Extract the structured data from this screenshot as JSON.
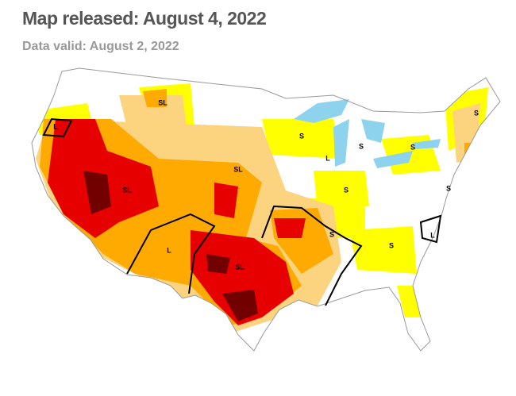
{
  "header": {
    "title": "Map released: August 4, 2022",
    "subtitle": "Data valid: August 2, 2022"
  },
  "map": {
    "labels": [
      "SL",
      "L",
      "S",
      "S",
      "S",
      "S",
      "L",
      "S",
      "SL",
      "SL",
      "L",
      "SL",
      "S",
      "S",
      "L",
      "S"
    ]
  }
}
